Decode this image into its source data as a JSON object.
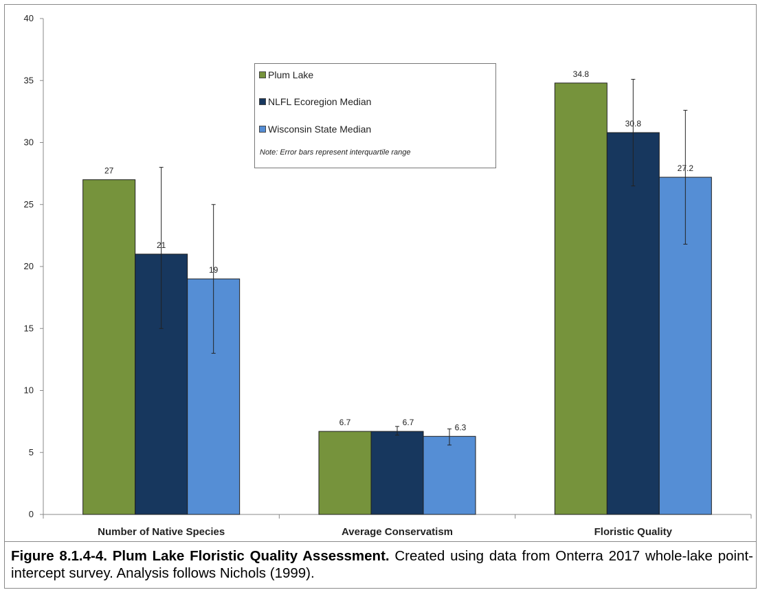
{
  "chart_data": {
    "type": "bar",
    "categories": [
      "Number of Native Species",
      "Average Conservatism",
      "Floristic Quality"
    ],
    "series": [
      {
        "name": "Plum Lake",
        "color": "#76933C",
        "values": [
          27,
          6.7,
          34.8
        ],
        "labels": [
          "27",
          "6.7",
          "34.8"
        ],
        "error": null
      },
      {
        "name": "NLFL Ecoregion Median",
        "color": "#17375E",
        "values": [
          21,
          6.7,
          30.8
        ],
        "labels": [
          "21",
          "6.7",
          "30.8"
        ],
        "error": [
          [
            15,
            28
          ],
          [
            6.4,
            7.1
          ],
          [
            26.5,
            35.1
          ]
        ]
      },
      {
        "name": "Wisconsin State Median",
        "color": "#558ED5",
        "values": [
          19,
          6.3,
          27.2
        ],
        "labels": [
          "19",
          "6.3",
          "27.2"
        ],
        "error": [
          [
            13,
            25
          ],
          [
            5.6,
            6.9
          ],
          [
            21.8,
            32.6
          ]
        ]
      }
    ],
    "ylim": [
      0,
      40
    ],
    "yticks": [
      "0",
      "5",
      "10",
      "15",
      "20",
      "25",
      "30",
      "35",
      "40"
    ],
    "grid": false,
    "legend_position": "top-center",
    "legend_note": "Note: Error bars represent interquartile range"
  },
  "caption": {
    "bold": "Figure 8.1.4-4.  Plum Lake Floristic Quality Assessment.",
    "text": "  Created using data from Onterra 2017 whole-lake point-intercept survey.  Analysis follows Nichols (1999)."
  }
}
